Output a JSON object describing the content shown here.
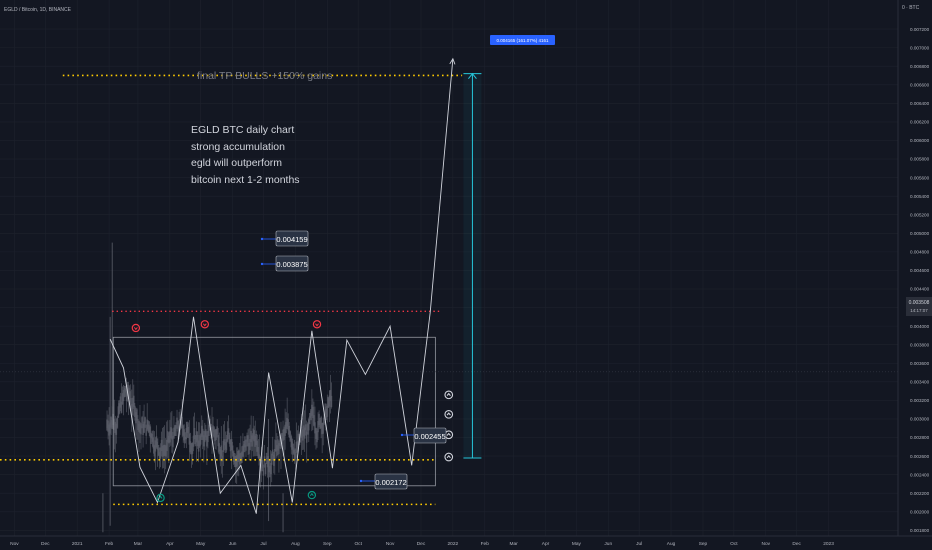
{
  "header": {
    "symbol": "EGLD / Bitcoin, 1D, BINANCE",
    "currency": "BTC",
    "top_right": "0 · BTC",
    "icon": "gear-icon"
  },
  "colors": {
    "background": "#131722",
    "grid": "#1e222d",
    "text": "#b2b5be",
    "candle": "#5d606b",
    "zigzag": "#d1d4dc",
    "range_box": "#9598a1",
    "yellow": "#ffcc00",
    "red": "#f23645",
    "green": "#089981",
    "cyan": "#26c6da",
    "callout_bg": "#2a3344",
    "blue_label": "#2962ff"
  },
  "annotations": {
    "target_note": "final TP BULLS +150% gains",
    "idea_line1": "EGLD BTC daily chart",
    "idea_line2": "strong accumulation",
    "idea_line3": "egld will outperform",
    "idea_line4": "bitcoin next 1-2 months",
    "callout_resistance_high": "0.004159",
    "callout_resistance_box": "0.003875",
    "callout_support": "0.002455",
    "callout_low": "0.002172",
    "projection_label": "0.004165 (161.07%) 4161",
    "current_price": "0.003508",
    "current_countdown": "14:17:07"
  },
  "chart_data": {
    "type": "line",
    "title": "EGLD / Bitcoin, 1D, BINANCE",
    "xlabel": "",
    "ylabel": "",
    "x_ticks": [
      "Nov",
      "Dec",
      "2021",
      "Feb",
      "Mar",
      "Apr",
      "May",
      "Jun",
      "Jul",
      "Aug",
      "Sep",
      "Oct",
      "Nov",
      "Dec",
      "2022",
      "Feb",
      "Mar",
      "Apr",
      "May",
      "Jun",
      "Jul",
      "Aug",
      "Sep",
      "Oct",
      "Nov",
      "Dec",
      "2023"
    ],
    "y_ticks": [
      "0.007200",
      "0.007000",
      "0.006800",
      "0.006600",
      "0.006400",
      "0.006200",
      "0.006000",
      "0.005800",
      "0.005600",
      "0.005400",
      "0.005200",
      "0.005000",
      "0.004800",
      "0.004600",
      "0.004400",
      "0.004200",
      "0.004000",
      "0.003800",
      "0.003600",
      "0.003400",
      "0.003200",
      "0.003000",
      "0.002800",
      "0.002600",
      "0.002400",
      "0.002200",
      "0.002000",
      "0.001800"
    ],
    "ylim": [
      0.00175,
      0.00733
    ],
    "grid": true,
    "zigzag": {
      "x": [
        "2021-02-02",
        "2021-02-15",
        "2021-03-03",
        "2021-03-20",
        "2021-04-09",
        "2021-04-24",
        "2021-05-20",
        "2021-06-09",
        "2021-06-24",
        "2021-07-06",
        "2021-07-29",
        "2021-08-17",
        "2021-09-06",
        "2021-09-20",
        "2021-10-08",
        "2021-11-01",
        "2021-11-22",
        "2021-12-10",
        "2022-01-01"
      ],
      "y": [
        0.00386,
        0.00355,
        0.00248,
        0.0021,
        0.00275,
        0.0041,
        0.0022,
        0.0025,
        0.00198,
        0.0035,
        0.0021,
        0.00395,
        0.00247,
        0.00385,
        0.00348,
        0.004,
        0.0025,
        0.00415,
        0.00688
      ]
    },
    "lines": {
      "target_yellow": 0.0067,
      "red_resistance": 0.00416,
      "support_yellow_top": 0.00256,
      "support_yellow_bottom": 0.00208,
      "current_price": 0.003508
    },
    "range_box": {
      "x_start": "2021-02-05",
      "x_end": "2021-12-15",
      "y_top": 0.00388,
      "y_bottom": 0.00228
    },
    "projection": {
      "x": "2022-01-20",
      "from": 0.00258,
      "to": 0.00672,
      "label": "0.004165 (161.07%) 4161"
    },
    "markers": [
      {
        "kind": "red",
        "x": "2021-02-27",
        "y": 0.00398
      },
      {
        "kind": "red",
        "x": "2021-05-05",
        "y": 0.00402
      },
      {
        "kind": "red",
        "x": "2021-08-22",
        "y": 0.00402
      },
      {
        "kind": "green",
        "x": "2021-03-23",
        "y": 0.00215
      },
      {
        "kind": "green",
        "x": "2021-08-17",
        "y": 0.00218
      },
      {
        "kind": "white",
        "x": "2021-12-28",
        "y": 0.00326
      },
      {
        "kind": "white",
        "x": "2021-12-28",
        "y": 0.00305
      },
      {
        "kind": "white",
        "x": "2021-12-28",
        "y": 0.00283
      },
      {
        "kind": "white",
        "x": "2021-12-28",
        "y": 0.00259
      }
    ]
  }
}
